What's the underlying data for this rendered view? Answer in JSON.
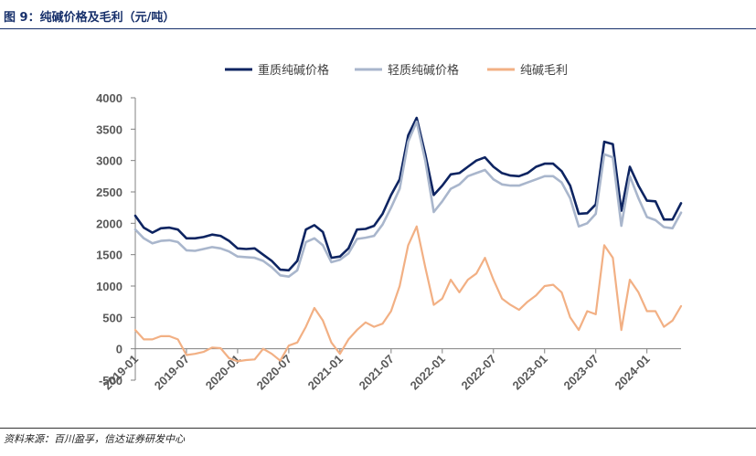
{
  "figure": {
    "title": "图 9：纯碱价格及毛利（元/吨）",
    "source": "资料来源：百川盈孚，信达证券研发中心"
  },
  "colors": {
    "heavy": "#0d2461",
    "light": "#a9b6cc",
    "margin": "#f2b084",
    "axis": "#808080",
    "tick_text": "#595959"
  },
  "chart_data": {
    "type": "line",
    "legend_position": "top",
    "grid": false,
    "ylim": [
      -500,
      4000
    ],
    "yticks": [
      "4000",
      "3500",
      "3000",
      "2500",
      "2000",
      "1500",
      "1000",
      "500",
      "0",
      "-500"
    ],
    "xticks": [
      "2019-01",
      "2019-07",
      "2020-01",
      "2020-07",
      "2021-01",
      "2021-07",
      "2022-01",
      "2022-07",
      "2023-01",
      "2023-07",
      "2024-01"
    ],
    "x_start": "2019-01",
    "x_end": "2024-05",
    "series": [
      {
        "name": "重质纯碱价格",
        "color": "#0d2461",
        "points": [
          [
            "2019-01",
            2120
          ],
          [
            "2019-02",
            1930
          ],
          [
            "2019-03",
            1850
          ],
          [
            "2019-04",
            1920
          ],
          [
            "2019-05",
            1930
          ],
          [
            "2019-06",
            1900
          ],
          [
            "2019-07",
            1760
          ],
          [
            "2019-08",
            1760
          ],
          [
            "2019-09",
            1780
          ],
          [
            "2019-10",
            1820
          ],
          [
            "2019-11",
            1800
          ],
          [
            "2019-12",
            1720
          ],
          [
            "2020-01",
            1600
          ],
          [
            "2020-02",
            1590
          ],
          [
            "2020-03",
            1600
          ],
          [
            "2020-04",
            1500
          ],
          [
            "2020-05",
            1400
          ],
          [
            "2020-06",
            1260
          ],
          [
            "2020-07",
            1250
          ],
          [
            "2020-08",
            1400
          ],
          [
            "2020-09",
            1900
          ],
          [
            "2020-10",
            1970
          ],
          [
            "2020-11",
            1860
          ],
          [
            "2020-12",
            1450
          ],
          [
            "2021-01",
            1470
          ],
          [
            "2021-02",
            1600
          ],
          [
            "2021-03",
            1900
          ],
          [
            "2021-04",
            1910
          ],
          [
            "2021-05",
            1960
          ],
          [
            "2021-06",
            2150
          ],
          [
            "2021-07",
            2450
          ],
          [
            "2021-08",
            2700
          ],
          [
            "2021-09",
            3400
          ],
          [
            "2021-10",
            3680
          ],
          [
            "2021-11",
            3100
          ],
          [
            "2021-12",
            2450
          ],
          [
            "2022-01",
            2600
          ],
          [
            "2022-02",
            2780
          ],
          [
            "2022-03",
            2800
          ],
          [
            "2022-04",
            2900
          ],
          [
            "2022-05",
            3000
          ],
          [
            "2022-06",
            3050
          ],
          [
            "2022-07",
            2900
          ],
          [
            "2022-08",
            2800
          ],
          [
            "2022-09",
            2760
          ],
          [
            "2022-10",
            2750
          ],
          [
            "2022-11",
            2800
          ],
          [
            "2022-12",
            2900
          ],
          [
            "2023-01",
            2950
          ],
          [
            "2023-02",
            2950
          ],
          [
            "2023-03",
            2830
          ],
          [
            "2023-04",
            2600
          ],
          [
            "2023-05",
            2150
          ],
          [
            "2023-06",
            2160
          ],
          [
            "2023-07",
            2300
          ],
          [
            "2023-08",
            3300
          ],
          [
            "2023-09",
            3260
          ],
          [
            "2023-10",
            2200
          ],
          [
            "2023-11",
            2900
          ],
          [
            "2023-12",
            2600
          ],
          [
            "2024-01",
            2360
          ],
          [
            "2024-02",
            2350
          ],
          [
            "2024-03",
            2060
          ],
          [
            "2024-04",
            2060
          ],
          [
            "2024-05",
            2320
          ]
        ]
      },
      {
        "name": "轻质纯碱价格",
        "color": "#a9b6cc",
        "points": [
          [
            "2019-01",
            1900
          ],
          [
            "2019-02",
            1760
          ],
          [
            "2019-03",
            1680
          ],
          [
            "2019-04",
            1720
          ],
          [
            "2019-05",
            1730
          ],
          [
            "2019-06",
            1700
          ],
          [
            "2019-07",
            1570
          ],
          [
            "2019-08",
            1560
          ],
          [
            "2019-09",
            1590
          ],
          [
            "2019-10",
            1620
          ],
          [
            "2019-11",
            1600
          ],
          [
            "2019-12",
            1550
          ],
          [
            "2020-01",
            1470
          ],
          [
            "2020-02",
            1460
          ],
          [
            "2020-03",
            1450
          ],
          [
            "2020-04",
            1400
          ],
          [
            "2020-05",
            1300
          ],
          [
            "2020-06",
            1170
          ],
          [
            "2020-07",
            1150
          ],
          [
            "2020-08",
            1250
          ],
          [
            "2020-09",
            1700
          ],
          [
            "2020-10",
            1760
          ],
          [
            "2020-11",
            1650
          ],
          [
            "2020-12",
            1380
          ],
          [
            "2021-01",
            1420
          ],
          [
            "2021-02",
            1520
          ],
          [
            "2021-03",
            1750
          ],
          [
            "2021-04",
            1770
          ],
          [
            "2021-05",
            1800
          ],
          [
            "2021-06",
            1980
          ],
          [
            "2021-07",
            2250
          ],
          [
            "2021-08",
            2550
          ],
          [
            "2021-09",
            3300
          ],
          [
            "2021-10",
            3620
          ],
          [
            "2021-11",
            3000
          ],
          [
            "2021-12",
            2180
          ],
          [
            "2022-01",
            2350
          ],
          [
            "2022-02",
            2550
          ],
          [
            "2022-03",
            2620
          ],
          [
            "2022-04",
            2750
          ],
          [
            "2022-05",
            2800
          ],
          [
            "2022-06",
            2850
          ],
          [
            "2022-07",
            2700
          ],
          [
            "2022-08",
            2620
          ],
          [
            "2022-09",
            2600
          ],
          [
            "2022-10",
            2600
          ],
          [
            "2022-11",
            2650
          ],
          [
            "2022-12",
            2700
          ],
          [
            "2023-01",
            2750
          ],
          [
            "2023-02",
            2750
          ],
          [
            "2023-03",
            2650
          ],
          [
            "2023-04",
            2400
          ],
          [
            "2023-05",
            1950
          ],
          [
            "2023-06",
            2000
          ],
          [
            "2023-07",
            2150
          ],
          [
            "2023-08",
            3100
          ],
          [
            "2023-09",
            3050
          ],
          [
            "2023-10",
            1960
          ],
          [
            "2023-11",
            2750
          ],
          [
            "2023-12",
            2400
          ],
          [
            "2024-01",
            2100
          ],
          [
            "2024-02",
            2050
          ],
          [
            "2024-03",
            1940
          ],
          [
            "2024-04",
            1920
          ],
          [
            "2024-05",
            2170
          ]
        ]
      },
      {
        "name": "纯碱毛利",
        "color": "#f2b084",
        "points": [
          [
            "2019-01",
            300
          ],
          [
            "2019-02",
            150
          ],
          [
            "2019-03",
            150
          ],
          [
            "2019-04",
            200
          ],
          [
            "2019-05",
            200
          ],
          [
            "2019-06",
            150
          ],
          [
            "2019-07",
            -100
          ],
          [
            "2019-08",
            -80
          ],
          [
            "2019-09",
            -50
          ],
          [
            "2019-10",
            20
          ],
          [
            "2019-11",
            10
          ],
          [
            "2019-12",
            -150
          ],
          [
            "2020-01",
            -200
          ],
          [
            "2020-02",
            -180
          ],
          [
            "2020-03",
            -170
          ],
          [
            "2020-04",
            0
          ],
          [
            "2020-05",
            -80
          ],
          [
            "2020-06",
            -190
          ],
          [
            "2020-07",
            50
          ],
          [
            "2020-08",
            100
          ],
          [
            "2020-09",
            350
          ],
          [
            "2020-10",
            650
          ],
          [
            "2020-11",
            450
          ],
          [
            "2020-12",
            100
          ],
          [
            "2021-01",
            -80
          ],
          [
            "2021-02",
            150
          ],
          [
            "2021-03",
            300
          ],
          [
            "2021-04",
            420
          ],
          [
            "2021-05",
            350
          ],
          [
            "2021-06",
            400
          ],
          [
            "2021-07",
            600
          ],
          [
            "2021-08",
            1000
          ],
          [
            "2021-09",
            1650
          ],
          [
            "2021-10",
            1950
          ],
          [
            "2021-11",
            1300
          ],
          [
            "2021-12",
            700
          ],
          [
            "2022-01",
            800
          ],
          [
            "2022-02",
            1100
          ],
          [
            "2022-03",
            900
          ],
          [
            "2022-04",
            1100
          ],
          [
            "2022-05",
            1200
          ],
          [
            "2022-06",
            1450
          ],
          [
            "2022-07",
            1100
          ],
          [
            "2022-08",
            800
          ],
          [
            "2022-09",
            700
          ],
          [
            "2022-10",
            620
          ],
          [
            "2022-11",
            750
          ],
          [
            "2022-12",
            850
          ],
          [
            "2023-01",
            1000
          ],
          [
            "2023-02",
            1020
          ],
          [
            "2023-03",
            900
          ],
          [
            "2023-04",
            500
          ],
          [
            "2023-05",
            300
          ],
          [
            "2023-06",
            600
          ],
          [
            "2023-07",
            550
          ],
          [
            "2023-08",
            1650
          ],
          [
            "2023-09",
            1450
          ],
          [
            "2023-10",
            300
          ],
          [
            "2023-11",
            1100
          ],
          [
            "2023-12",
            900
          ],
          [
            "2024-01",
            600
          ],
          [
            "2024-02",
            600
          ],
          [
            "2024-03",
            350
          ],
          [
            "2024-04",
            450
          ],
          [
            "2024-05",
            680
          ]
        ]
      }
    ]
  }
}
